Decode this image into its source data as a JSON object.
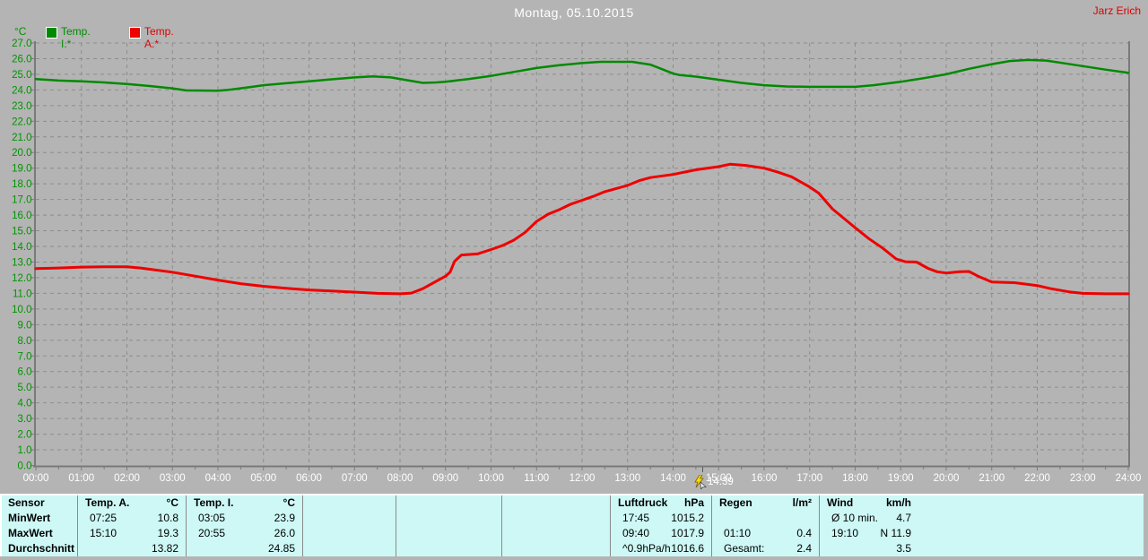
{
  "header": {
    "title": "Montag, 05.10.2015",
    "user": "Jarz Erich"
  },
  "legend": {
    "axis_unit": "°C",
    "series": [
      {
        "label": "Temp. I.*",
        "color": "#008a00"
      },
      {
        "label": "Temp. A.*",
        "color": "#ee0000"
      }
    ]
  },
  "chart_data": {
    "type": "line",
    "title": "Montag, 05.10.2015",
    "ylabel": "°C",
    "xlabel": "",
    "ylim": [
      0,
      27
    ],
    "y_step": 1,
    "xlim_hours": [
      0,
      24
    ],
    "grid": true,
    "x_ticks": [
      "00:00",
      "01:00",
      "02:00",
      "03:00",
      "04:00",
      "05:00",
      "06:00",
      "07:00",
      "08:00",
      "09:00",
      "10:00",
      "11:00",
      "12:00",
      "13:00",
      "14:00",
      "15:00",
      "16:00",
      "17:00",
      "18:00",
      "19:00",
      "20:00",
      "21:00",
      "22:00",
      "23:00",
      "24:00"
    ],
    "cursor": {
      "time": "14:39",
      "hour": 14.65
    },
    "series": [
      {
        "name": "Temp. I.*",
        "color": "#008a00",
        "width": 2.5,
        "points": [
          [
            0,
            24.7
          ],
          [
            0.5,
            24.6
          ],
          [
            1,
            24.55
          ],
          [
            1.5,
            24.48
          ],
          [
            2,
            24.38
          ],
          [
            2.5,
            24.25
          ],
          [
            3,
            24.1
          ],
          [
            3.3,
            23.97
          ],
          [
            4,
            23.95
          ],
          [
            4.3,
            24.03
          ],
          [
            4.7,
            24.18
          ],
          [
            5,
            24.3
          ],
          [
            5.5,
            24.43
          ],
          [
            6,
            24.55
          ],
          [
            6.5,
            24.68
          ],
          [
            7,
            24.8
          ],
          [
            7.4,
            24.87
          ],
          [
            7.8,
            24.8
          ],
          [
            8.2,
            24.6
          ],
          [
            8.5,
            24.45
          ],
          [
            8.8,
            24.48
          ],
          [
            9,
            24.52
          ],
          [
            9.5,
            24.7
          ],
          [
            10,
            24.9
          ],
          [
            10.5,
            25.15
          ],
          [
            11,
            25.4
          ],
          [
            11.5,
            25.58
          ],
          [
            12,
            25.72
          ],
          [
            12.4,
            25.8
          ],
          [
            13.1,
            25.8
          ],
          [
            13.5,
            25.62
          ],
          [
            14,
            25.05
          ],
          [
            14.15,
            24.95
          ],
          [
            14.5,
            24.85
          ],
          [
            15,
            24.65
          ],
          [
            15.5,
            24.45
          ],
          [
            16,
            24.3
          ],
          [
            16.5,
            24.22
          ],
          [
            17,
            24.2
          ],
          [
            18,
            24.2
          ],
          [
            18.4,
            24.3
          ],
          [
            19,
            24.52
          ],
          [
            19.5,
            24.75
          ],
          [
            20,
            25.0
          ],
          [
            20.5,
            25.35
          ],
          [
            21,
            25.65
          ],
          [
            21.4,
            25.85
          ],
          [
            21.8,
            25.92
          ],
          [
            22.2,
            25.88
          ],
          [
            22.6,
            25.7
          ],
          [
            23,
            25.52
          ],
          [
            23.5,
            25.3
          ],
          [
            24,
            25.1
          ]
        ]
      },
      {
        "name": "Temp. A.*",
        "color": "#ee0000",
        "width": 3,
        "points": [
          [
            0,
            12.58
          ],
          [
            0.5,
            12.62
          ],
          [
            1,
            12.68
          ],
          [
            1.5,
            12.7
          ],
          [
            2,
            12.7
          ],
          [
            2.3,
            12.62
          ],
          [
            3,
            12.35
          ],
          [
            3.5,
            12.1
          ],
          [
            4,
            11.85
          ],
          [
            4.5,
            11.62
          ],
          [
            5,
            11.45
          ],
          [
            5.5,
            11.32
          ],
          [
            6,
            11.22
          ],
          [
            6.5,
            11.15
          ],
          [
            7,
            11.08
          ],
          [
            7.5,
            11.0
          ],
          [
            8,
            10.97
          ],
          [
            8.25,
            11.02
          ],
          [
            8.5,
            11.3
          ],
          [
            8.75,
            11.7
          ],
          [
            9,
            12.1
          ],
          [
            9.1,
            12.35
          ],
          [
            9.2,
            13.05
          ],
          [
            9.35,
            13.45
          ],
          [
            9.7,
            13.52
          ],
          [
            10,
            13.8
          ],
          [
            10.25,
            14.05
          ],
          [
            10.5,
            14.4
          ],
          [
            10.75,
            14.9
          ],
          [
            11,
            15.6
          ],
          [
            11.25,
            16.05
          ],
          [
            11.5,
            16.35
          ],
          [
            11.75,
            16.7
          ],
          [
            12,
            16.95
          ],
          [
            12.25,
            17.2
          ],
          [
            12.5,
            17.5
          ],
          [
            12.75,
            17.7
          ],
          [
            13,
            17.9
          ],
          [
            13.25,
            18.2
          ],
          [
            13.5,
            18.4
          ],
          [
            14,
            18.6
          ],
          [
            14.25,
            18.75
          ],
          [
            14.5,
            18.9
          ],
          [
            15,
            19.1
          ],
          [
            15.25,
            19.25
          ],
          [
            15.6,
            19.18
          ],
          [
            16,
            19.0
          ],
          [
            16.3,
            18.75
          ],
          [
            16.6,
            18.45
          ],
          [
            17,
            17.8
          ],
          [
            17.2,
            17.4
          ],
          [
            17.5,
            16.4
          ],
          [
            18,
            15.2
          ],
          [
            18.3,
            14.5
          ],
          [
            18.6,
            13.9
          ],
          [
            18.9,
            13.2
          ],
          [
            19.1,
            13.02
          ],
          [
            19.35,
            13.0
          ],
          [
            19.6,
            12.6
          ],
          [
            19.8,
            12.38
          ],
          [
            20,
            12.3
          ],
          [
            20.3,
            12.38
          ],
          [
            20.5,
            12.4
          ],
          [
            20.7,
            12.1
          ],
          [
            21,
            11.72
          ],
          [
            21.5,
            11.68
          ],
          [
            22,
            11.5
          ],
          [
            22.3,
            11.3
          ],
          [
            22.7,
            11.1
          ],
          [
            23,
            11.0
          ],
          [
            23.5,
            10.97
          ],
          [
            24,
            10.97
          ]
        ]
      }
    ]
  },
  "stats_table": {
    "row_labels": [
      "Sensor",
      "MinWert",
      "MaxWert",
      "Durchschnitt"
    ],
    "sections": [
      {
        "name": "Temp. A.",
        "unit": "°C",
        "rows": [
          [
            "07:25",
            "10.8"
          ],
          [
            "15:10",
            "19.3"
          ],
          [
            "",
            "13.82"
          ]
        ]
      },
      {
        "name": "Temp. I.",
        "unit": "°C",
        "rows": [
          [
            "03:05",
            "23.9"
          ],
          [
            "20:55",
            "26.0"
          ],
          [
            "",
            "24.85"
          ]
        ]
      },
      {
        "name": "",
        "unit": "",
        "rows": [
          [
            "",
            ""
          ],
          [
            "",
            ""
          ],
          [
            "",
            ""
          ]
        ]
      },
      {
        "name": "",
        "unit": "",
        "rows": [
          [
            "",
            ""
          ],
          [
            "",
            ""
          ],
          [
            "",
            ""
          ]
        ]
      },
      {
        "name": "",
        "unit": "",
        "rows": [
          [
            "",
            ""
          ],
          [
            "",
            ""
          ],
          [
            "",
            ""
          ]
        ]
      },
      {
        "name": "Luftdruck",
        "unit": "hPa",
        "rows": [
          [
            "17:45",
            "1015.2"
          ],
          [
            "09:40",
            "1017.9"
          ],
          [
            "^0.9hPa/h",
            "1016.6"
          ]
        ]
      },
      {
        "name": "Regen",
        "unit": "l/m²",
        "rows": [
          [
            "",
            ""
          ],
          [
            "01:10",
            "0.4"
          ],
          [
            "Gesamt:",
            "2.4"
          ]
        ]
      },
      {
        "name": "Wind",
        "unit": "km/h",
        "rows": [
          [
            "Ø 10 min.",
            "4.7"
          ],
          [
            "19:10",
            "N 11.9"
          ],
          [
            "",
            "3.5"
          ]
        ]
      }
    ]
  },
  "colors": {
    "background": "#b4b4b4",
    "grid": "#8c8c8c",
    "axis": "#7a7a7a",
    "axis_label_green": "#009300",
    "tick_label_white": "#ffffff",
    "table_background": "#cdf8f5",
    "cursor_yellow": "#ffdf00"
  }
}
